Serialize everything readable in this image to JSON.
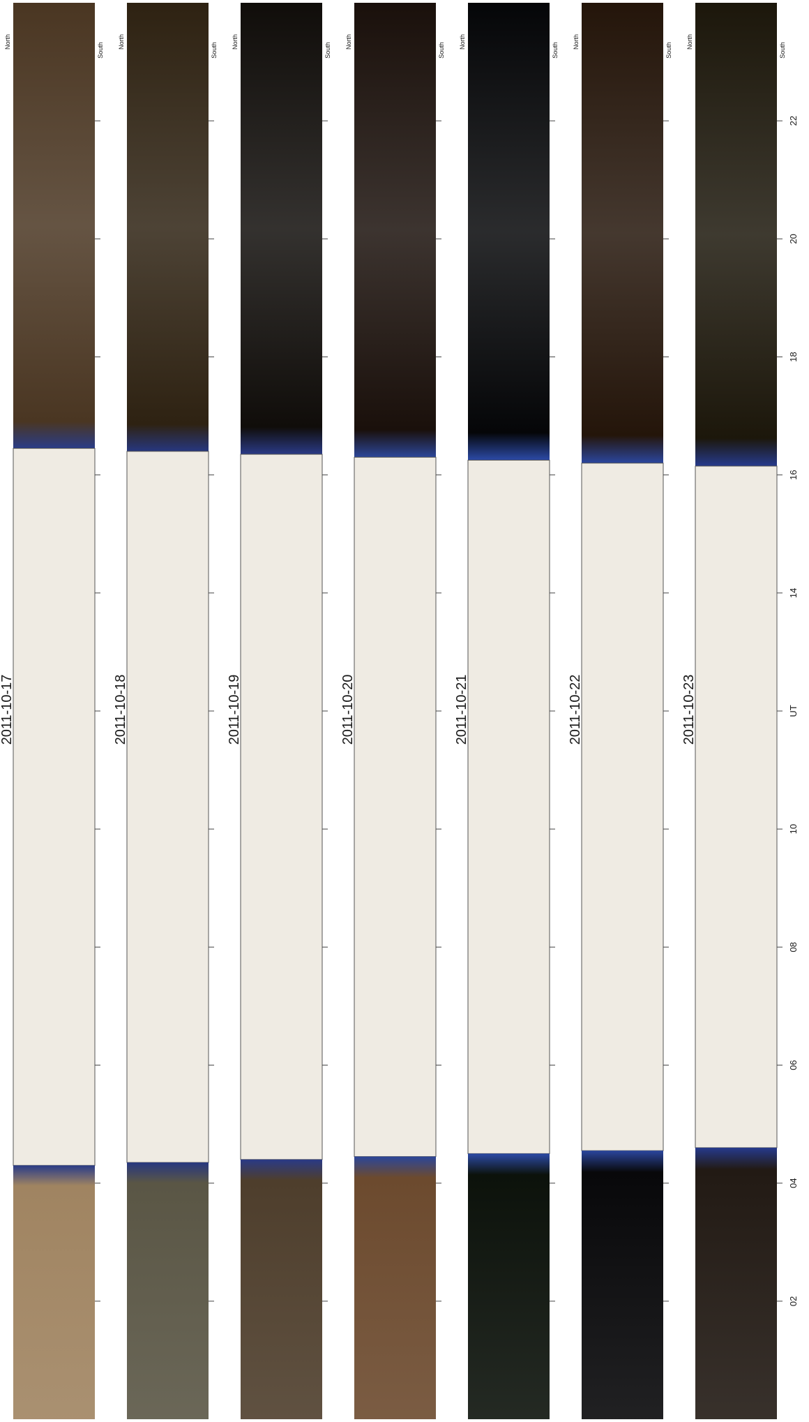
{
  "figure": {
    "axis_title": "UT",
    "tick_labels": [
      "02",
      "04",
      "06",
      "08",
      "10",
      "12",
      "14",
      "16",
      "18",
      "20",
      "22"
    ],
    "north_label": "North",
    "south_label": "South",
    "panels": [
      {
        "date": "2011-10-17",
        "day_end_ut": 4.3,
        "day_start_ut": 16.45,
        "night_color": "#4a3622",
        "dawn_color": "#a08461",
        "twilight_color": "#2a3c88"
      },
      {
        "date": "2011-10-18",
        "day_end_ut": 4.35,
        "day_start_ut": 16.4,
        "night_color": "#2e2212",
        "dawn_color": "#5a5645",
        "twilight_color": "#27377f"
      },
      {
        "date": "2011-10-19",
        "day_end_ut": 4.4,
        "day_start_ut": 16.35,
        "night_color": "#100d0a",
        "dawn_color": "#4e3e2c",
        "twilight_color": "#2a3a86"
      },
      {
        "date": "2011-10-20",
        "day_end_ut": 4.45,
        "day_start_ut": 16.3,
        "night_color": "#1a100b",
        "dawn_color": "#6c4a2e",
        "twilight_color": "#2c4699"
      },
      {
        "date": "2011-10-21",
        "day_end_ut": 4.5,
        "day_start_ut": 16.25,
        "night_color": "#050608",
        "dawn_color": "#0c120b",
        "twilight_color": "#2c4aa6"
      },
      {
        "date": "2011-10-22",
        "day_end_ut": 4.55,
        "day_start_ut": 16.2,
        "night_color": "#24150a",
        "dawn_color": "#08080a",
        "twilight_color": "#2b469e"
      },
      {
        "date": "2011-10-23",
        "day_end_ut": 4.6,
        "day_start_ut": 16.15,
        "night_color": "#1c170b",
        "dawn_color": "#221a14",
        "twilight_color": "#263a8c"
      }
    ],
    "colors": {
      "day": "#efebe3",
      "frame": "#555555",
      "tick": "#444444"
    }
  }
}
